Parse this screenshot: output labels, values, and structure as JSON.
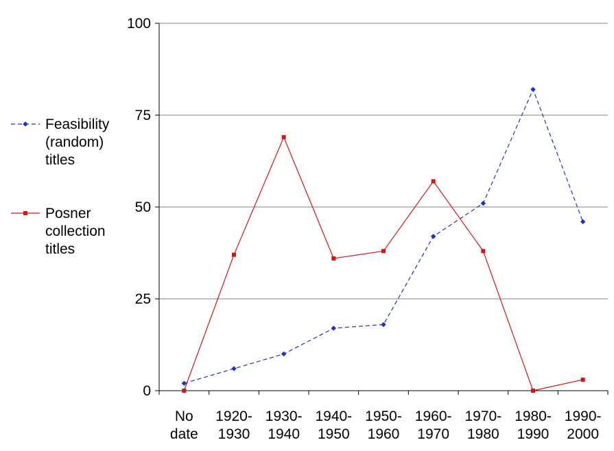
{
  "chart_data": {
    "type": "line",
    "categories": [
      [
        "No",
        "date"
      ],
      [
        "1920-",
        "1930"
      ],
      [
        "1930-",
        "1940"
      ],
      [
        "1940-",
        "1950"
      ],
      [
        "1950-",
        "1960"
      ],
      [
        "1960-",
        "1970"
      ],
      [
        "1970-",
        "1980"
      ],
      [
        "1980-",
        "1990"
      ],
      [
        "1990-",
        "2000"
      ]
    ],
    "series": [
      {
        "name_lines": [
          "Feasibility",
          "(random)",
          "titles"
        ],
        "values": [
          2,
          6,
          10,
          17,
          18,
          42,
          51,
          82,
          46
        ],
        "color": "#1f2fd0",
        "line_style": "dashed",
        "marker": "diamond"
      },
      {
        "name_lines": [
          "Posner",
          "collection",
          "titles"
        ],
        "values": [
          0,
          37,
          69,
          36,
          38,
          57,
          38,
          0,
          3
        ],
        "color": "#e01010",
        "line_style": "solid",
        "marker": "square"
      }
    ],
    "ylim": [
      0,
      100
    ],
    "yticks": [
      0,
      25,
      50,
      75,
      100
    ],
    "grid": true,
    "legend_position": "left"
  }
}
